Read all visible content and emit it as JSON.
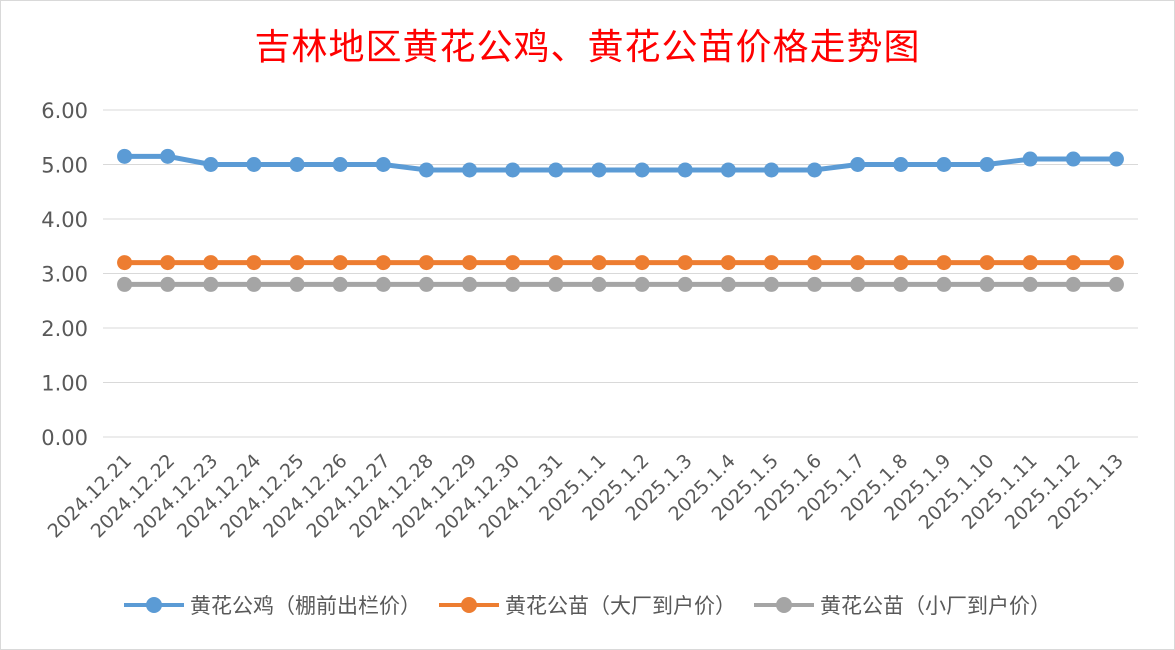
{
  "chart_data": {
    "type": "line",
    "title": "吉林地区黄花公鸡、黄花公苗价格走势图",
    "categories": [
      "2024.12.21",
      "2024.12.22",
      "2024.12.23",
      "2024.12.24",
      "2024.12.25",
      "2024.12.26",
      "2024.12.27",
      "2024.12.28",
      "2024.12.29",
      "2024.12.30",
      "2024.12.31",
      "2025.1.1",
      "2025.1.2",
      "2025.1.3",
      "2025.1.4",
      "2025.1.5",
      "2025.1.6",
      "2025.1.7",
      "2025.1.8",
      "2025.1.9",
      "2025.1.10",
      "2025.1.11",
      "2025.1.12",
      "2025.1.13"
    ],
    "series": [
      {
        "name": "黄花公鸡（棚前出栏价）",
        "color": "#5b9bd5",
        "values": [
          5.15,
          5.15,
          5.0,
          5.0,
          5.0,
          5.0,
          5.0,
          4.9,
          4.9,
          4.9,
          4.9,
          4.9,
          4.9,
          4.9,
          4.9,
          4.9,
          4.9,
          5.0,
          5.0,
          5.0,
          5.0,
          5.1,
          5.1,
          5.1
        ]
      },
      {
        "name": "黄花公苗（大厂到户价）",
        "color": "#ed7d31",
        "values": [
          3.2,
          3.2,
          3.2,
          3.2,
          3.2,
          3.2,
          3.2,
          3.2,
          3.2,
          3.2,
          3.2,
          3.2,
          3.2,
          3.2,
          3.2,
          3.2,
          3.2,
          3.2,
          3.2,
          3.2,
          3.2,
          3.2,
          3.2,
          3.2
        ]
      },
      {
        "name": "黄花公苗（小厂到户价）",
        "color": "#a5a5a5",
        "values": [
          2.8,
          2.8,
          2.8,
          2.8,
          2.8,
          2.8,
          2.8,
          2.8,
          2.8,
          2.8,
          2.8,
          2.8,
          2.8,
          2.8,
          2.8,
          2.8,
          2.8,
          2.8,
          2.8,
          2.8,
          2.8,
          2.8,
          2.8,
          2.8
        ]
      }
    ],
    "yticks": [
      "0.00",
      "1.00",
      "2.00",
      "3.00",
      "4.00",
      "5.00",
      "6.00"
    ],
    "ylim": [
      0,
      6
    ],
    "xlabel": "",
    "ylabel": "",
    "grid": true,
    "legend": "bottom"
  }
}
